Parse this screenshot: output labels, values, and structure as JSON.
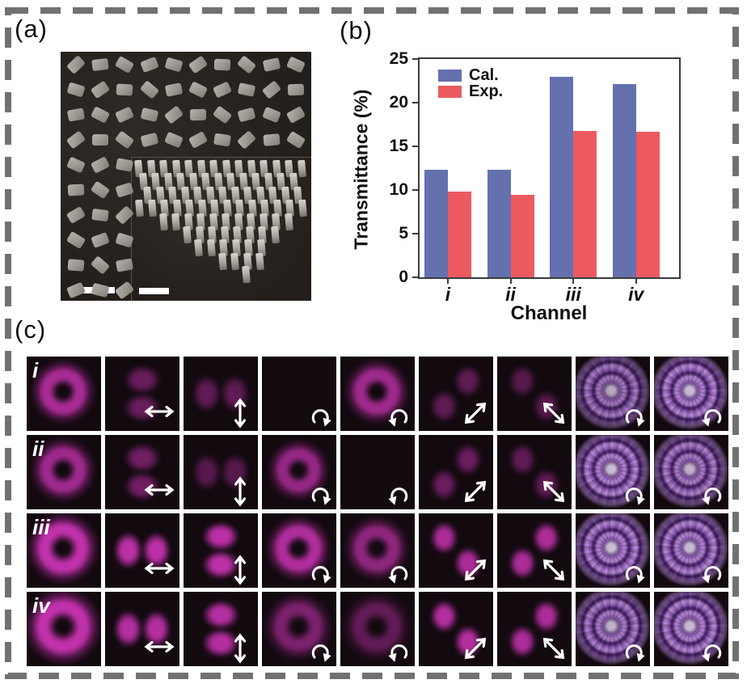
{
  "figure": {
    "border_color": "#717171",
    "background": "#ffffff"
  },
  "panel_a": {
    "label": "(a)",
    "content": "sem-micrograph-of-nanopillar-metasurface-with-tilted-view-inset",
    "scale_bar_count": 2
  },
  "panel_b": {
    "label": "(b)"
  },
  "chart_data": {
    "type": "bar",
    "title": "",
    "xlabel": "Channel",
    "ylabel": "Transmittance (%)",
    "categories": [
      "i",
      "ii",
      "iii",
      "iv"
    ],
    "series": [
      {
        "name": "Cal.",
        "color": "#6471ae",
        "values": [
          12.3,
          12.3,
          23.0,
          22.1
        ]
      },
      {
        "name": "Exp.",
        "color": "#ec5a60",
        "values": [
          9.8,
          9.4,
          16.8,
          16.7
        ]
      }
    ],
    "ylim": [
      0,
      25
    ],
    "yticks": [
      0,
      5,
      10,
      15,
      20,
      25
    ],
    "legend_position": "top-left",
    "grid": false
  },
  "panel_c": {
    "label": "(c)",
    "mode_color": "#cb34b4",
    "speckle_color": "#b286d8",
    "rows": [
      {
        "label": "i",
        "cells": [
          {
            "mode": "donut",
            "intensity": 0.85,
            "size": 0.95,
            "arrow": null
          },
          {
            "mode": "lobes-v",
            "intensity": 0.5,
            "arrow": "pol-h"
          },
          {
            "mode": "lobes-h",
            "intensity": 0.45,
            "arrow": "pol-v"
          },
          {
            "mode": "dark",
            "intensity": 0,
            "arrow": "rot-cw"
          },
          {
            "mode": "donut",
            "intensity": 0.8,
            "size": 0.95,
            "arrow": "rot-ccw"
          },
          {
            "mode": "lobes-d45",
            "intensity": 0.45,
            "arrow": "pol-d45"
          },
          {
            "mode": "lobes-d135",
            "intensity": 0.4,
            "arrow": "pol-d135"
          },
          {
            "mode": "speckle",
            "intensity": 0.85,
            "arrow": "rot-cw"
          },
          {
            "mode": "speckle",
            "intensity": 0.95,
            "arrow": "rot-ccw"
          }
        ]
      },
      {
        "label": "ii",
        "cells": [
          {
            "mode": "donut",
            "intensity": 0.8,
            "size": 0.95,
            "arrow": null
          },
          {
            "mode": "lobes-v",
            "intensity": 0.55,
            "arrow": "pol-h"
          },
          {
            "mode": "lobes-h",
            "intensity": 0.4,
            "arrow": "pol-v"
          },
          {
            "mode": "donut",
            "intensity": 0.75,
            "size": 0.9,
            "arrow": "rot-cw"
          },
          {
            "mode": "dark",
            "intensity": 0,
            "arrow": "rot-ccw"
          },
          {
            "mode": "lobes-d45",
            "intensity": 0.5,
            "arrow": "pol-d45"
          },
          {
            "mode": "lobes-d135",
            "intensity": 0.45,
            "arrow": "pol-d135"
          },
          {
            "mode": "speckle",
            "intensity": 0.95,
            "arrow": "rot-cw"
          },
          {
            "mode": "speckle",
            "intensity": 0.9,
            "arrow": "rot-ccw"
          }
        ]
      },
      {
        "label": "iii",
        "cells": [
          {
            "mode": "donut",
            "intensity": 1,
            "size": 1.05,
            "arrow": null
          },
          {
            "mode": "lobes-h",
            "intensity": 1,
            "arrow": "pol-h"
          },
          {
            "mode": "lobes-v",
            "intensity": 1,
            "arrow": "pol-v"
          },
          {
            "mode": "donut",
            "intensity": 0.9,
            "size": 0.95,
            "arrow": "rot-cw"
          },
          {
            "mode": "donut",
            "intensity": 0.7,
            "size": 0.95,
            "arrow": "rot-ccw"
          },
          {
            "mode": "lobes-d135",
            "intensity": 0.9,
            "arrow": "pol-d45"
          },
          {
            "mode": "lobes-d45",
            "intensity": 0.9,
            "arrow": "pol-d135"
          },
          {
            "mode": "speckle",
            "intensity": 0.95,
            "arrow": "rot-cw"
          },
          {
            "mode": "speckle",
            "intensity": 0.95,
            "arrow": "rot-ccw"
          }
        ]
      },
      {
        "label": "iv",
        "cells": [
          {
            "mode": "donut",
            "intensity": 1,
            "size": 1.12,
            "arrow": null
          },
          {
            "mode": "lobes-h",
            "intensity": 0.95,
            "arrow": "pol-h"
          },
          {
            "mode": "lobes-v",
            "intensity": 0.95,
            "arrow": "pol-v"
          },
          {
            "mode": "donut",
            "intensity": 0.6,
            "size": 1,
            "arrow": "rot-cw"
          },
          {
            "mode": "donut",
            "intensity": 0.45,
            "size": 1,
            "arrow": "rot-ccw"
          },
          {
            "mode": "lobes-d135",
            "intensity": 0.95,
            "arrow": "pol-d45"
          },
          {
            "mode": "lobes-d45",
            "intensity": 0.9,
            "arrow": "pol-d135"
          },
          {
            "mode": "speckle",
            "intensity": 0.9,
            "arrow": "rot-cw"
          },
          {
            "mode": "speckle",
            "intensity": 0.95,
            "arrow": "rot-ccw"
          }
        ]
      }
    ]
  }
}
